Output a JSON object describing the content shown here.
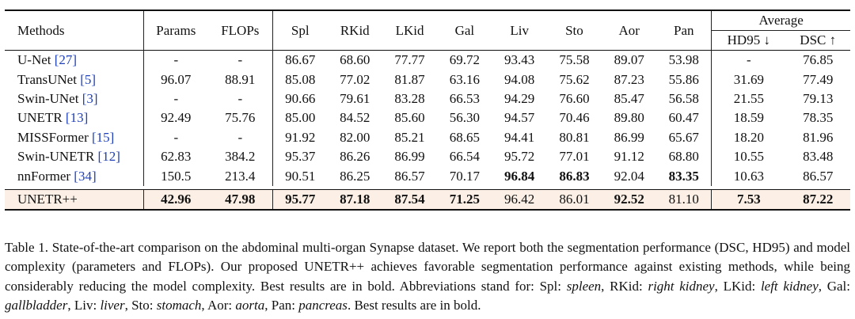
{
  "table": {
    "headers": {
      "methods": "Methods",
      "params": "Params",
      "flops": "FLOPs",
      "organs": [
        "Spl",
        "RKid",
        "LKid",
        "Gal",
        "Liv",
        "Sto",
        "Aor",
        "Pan"
      ],
      "average": "Average",
      "hd95": "HD95 ↓",
      "dsc": "DSC ↑"
    },
    "rows": [
      {
        "name": "U-Net",
        "cite": "[27]",
        "params": "-",
        "flops": "-",
        "vals": [
          "86.67",
          "68.60",
          "77.77",
          "69.72",
          "93.43",
          "75.58",
          "89.07",
          "53.98"
        ],
        "hd95": "-",
        "dsc": "76.85"
      },
      {
        "name": "TransUNet",
        "cite": "[5]",
        "params": "96.07",
        "flops": "88.91",
        "vals": [
          "85.08",
          "77.02",
          "81.87",
          "63.16",
          "94.08",
          "75.62",
          "87.23",
          "55.86"
        ],
        "hd95": "31.69",
        "dsc": "77.49"
      },
      {
        "name": "Swin-UNet",
        "cite": "[3]",
        "params": "-",
        "flops": "-",
        "vals": [
          "90.66",
          "79.61",
          "83.28",
          "66.53",
          "94.29",
          "76.60",
          "85.47",
          "56.58"
        ],
        "hd95": "21.55",
        "dsc": "79.13"
      },
      {
        "name": "UNETR",
        "cite": "[13]",
        "params": "92.49",
        "flops": "75.76",
        "vals": [
          "85.00",
          "84.52",
          "85.60",
          "56.30",
          "94.57",
          "70.46",
          "89.80",
          "60.47"
        ],
        "hd95": "18.59",
        "dsc": "78.35"
      },
      {
        "name": "MISSFormer",
        "cite": "[15]",
        "params": "-",
        "flops": "-",
        "vals": [
          "91.92",
          "82.00",
          "85.21",
          "68.65",
          "94.41",
          "80.81",
          "86.99",
          "65.67"
        ],
        "hd95": "18.20",
        "dsc": "81.96"
      },
      {
        "name": "Swin-UNETR",
        "cite": "[12]",
        "params": "62.83",
        "flops": "384.2",
        "vals": [
          "95.37",
          "86.26",
          "86.99",
          "66.54",
          "95.72",
          "77.01",
          "91.12",
          "68.80"
        ],
        "hd95": "10.55",
        "dsc": "83.48"
      },
      {
        "name": "nnFormer",
        "cite": "[34]",
        "params": "150.5",
        "flops": "213.4",
        "vals": [
          "90.51",
          "86.25",
          "86.57",
          "70.17",
          "96.84",
          "86.83",
          "92.04",
          "83.35"
        ],
        "hd95": "10.63",
        "dsc": "86.57"
      }
    ],
    "ours": {
      "name": "UNETR++",
      "params": "42.96",
      "flops": "47.98",
      "vals": [
        "95.77",
        "87.18",
        "87.54",
        "71.25",
        "96.42",
        "86.01",
        "92.52",
        "81.10"
      ],
      "hd95": "7.53",
      "dsc": "87.22"
    },
    "highlight_color": "#fcf0e6",
    "cite_color": "#1f40b8"
  },
  "caption": {
    "label": "Table 1.",
    "text_1": "State-of-the-art comparison on the abdominal multi-organ Synapse dataset. We report both the segmentation performance (DSC, HD95) and model complexity (parameters and FLOPs). Our proposed UNETR++ achieves favorable segmentation performance against existing methods, while being considerably reducing the model complexity. Best results are in bold. Abbreviations stand for: Spl: ",
    "spl": "spleen",
    "t_rkid": ", RKid: ",
    "rkid": "right kidney",
    "t_lkid": ", LKid: ",
    "lkid": "left kidney",
    "t_gal": ", Gal: ",
    "gal": "gallbladder",
    "t_liv": ", Liv: ",
    "liv": "liver",
    "t_sto": ", Sto: ",
    "sto": "stomach",
    "t_aor": ", Aor: ",
    "aor": "aorta",
    "t_pan": ", Pan: ",
    "pan": "pancreas",
    "text_end": ". Best results are in bold."
  }
}
